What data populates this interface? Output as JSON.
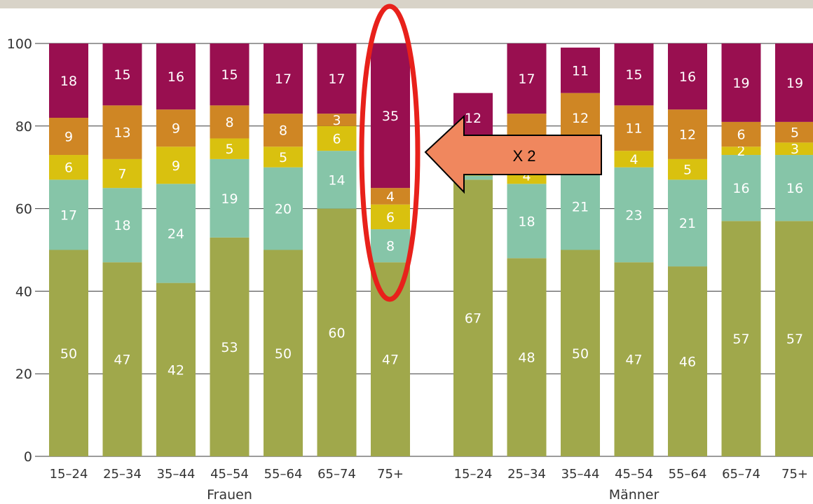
{
  "chart_data": {
    "type": "bar",
    "stacked": true,
    "ylim": [
      0,
      100
    ],
    "yticks": [
      0,
      20,
      40,
      60,
      80,
      100
    ],
    "grid": true,
    "groups": [
      {
        "label": "Frauen",
        "categories": [
          "15–24",
          "25–34",
          "35–44",
          "45–54",
          "55–64",
          "65–74",
          "75+"
        ]
      },
      {
        "label": "Männer",
        "categories": [
          "15–24",
          "25–34",
          "35–44",
          "45–54",
          "55–64",
          "65–74",
          "75+"
        ]
      }
    ],
    "series": [
      {
        "color": "#a0a84b",
        "values": [
          50,
          47,
          42,
          53,
          50,
          60,
          47,
          67,
          48,
          50,
          47,
          46,
          57,
          57
        ]
      },
      {
        "color": "#86c5a8",
        "values": [
          17,
          18,
          24,
          19,
          20,
          14,
          8,
          1,
          18,
          21,
          23,
          21,
          16,
          16
        ]
      },
      {
        "color": "#d9c10f",
        "values": [
          6,
          7,
          9,
          5,
          5,
          6,
          6,
          3,
          4,
          5,
          4,
          5,
          2,
          3
        ]
      },
      {
        "color": "#cf8624",
        "values": [
          9,
          13,
          9,
          8,
          8,
          3,
          4,
          5,
          13,
          12,
          11,
          12,
          6,
          5
        ]
      },
      {
        "color": "#990f50",
        "values": [
          18,
          15,
          16,
          15,
          17,
          17,
          35,
          12,
          17,
          11,
          15,
          16,
          19,
          19
        ]
      }
    ],
    "data_labels": [
      [
        "50",
        "47",
        "42",
        "53",
        "50",
        "60",
        "47",
        "67",
        "48",
        "50",
        "47",
        "46",
        "57",
        "57"
      ],
      [
        "17",
        "18",
        "24",
        "19",
        "20",
        "14",
        "8",
        "",
        "18",
        "21",
        "23",
        "21",
        "16",
        "16"
      ],
      [
        "6",
        "7",
        "9",
        "5",
        "5",
        "6",
        "6",
        "3",
        "4",
        "",
        "4",
        "5",
        "2",
        "3"
      ],
      [
        "9",
        "13",
        "9",
        "8",
        "8",
        "3",
        "4",
        "5",
        "",
        "12",
        "11",
        "12",
        "6",
        "5"
      ],
      [
        "18",
        "15",
        "16",
        "15",
        "17",
        "17",
        "35",
        "12",
        "17",
        "11",
        "15",
        "16",
        "19",
        "19"
      ]
    ],
    "annotations": [
      {
        "type": "ellipse",
        "target": "Frauen 75+",
        "color": "#e8211b"
      },
      {
        "type": "arrow",
        "direction": "left",
        "text": "X 2",
        "color": "#f0875e"
      }
    ]
  }
}
